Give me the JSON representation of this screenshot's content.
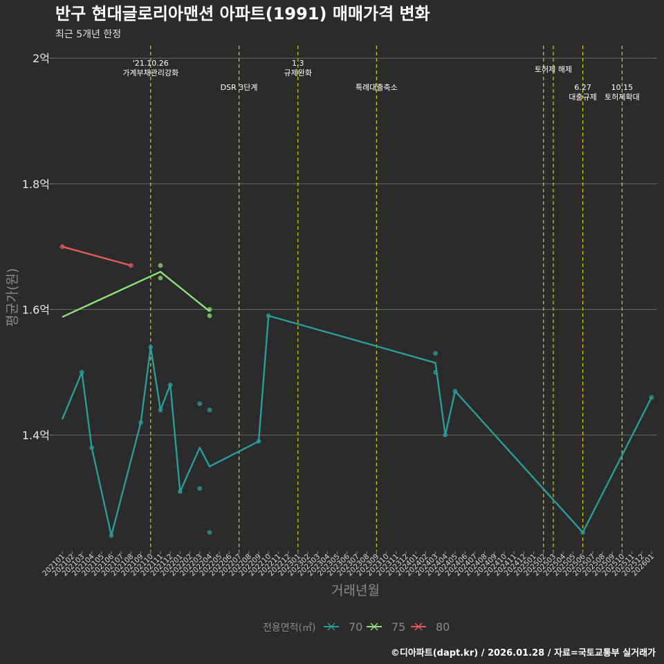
{
  "chart_data": {
    "type": "line",
    "title": "반구 현대글로리아맨션 아파트(1991) 매매가격 변화",
    "subtitle": "최근 5개년 한정",
    "xlabel": "거래년월",
    "ylabel": "평균가(원)",
    "ylim": [
      1.215,
      2.02
    ],
    "yticks": [
      {
        "value": 1.4,
        "label": "1.4억"
      },
      {
        "value": 1.6,
        "label": "1.6억"
      },
      {
        "value": 1.8,
        "label": "1.8억"
      },
      {
        "value": 2.0,
        "label": "2억"
      }
    ],
    "months": [
      "202101",
      "202102",
      "202103",
      "202104",
      "202105",
      "202106",
      "202107",
      "202108",
      "202109",
      "202110",
      "202111",
      "202112",
      "202201",
      "202202",
      "202203",
      "202204",
      "202205",
      "202206",
      "202207",
      "202208",
      "202209",
      "202210",
      "202211",
      "202212",
      "202301",
      "202302",
      "202303",
      "202304",
      "202305",
      "202306",
      "202307",
      "202308",
      "202309",
      "202310",
      "202311",
      "202312",
      "202401",
      "202402",
      "202403",
      "202404",
      "202405",
      "202406",
      "202407",
      "202408",
      "202409",
      "202410",
      "202411",
      "202412",
      "202501",
      "202502",
      "202503",
      "202504",
      "202505",
      "202506",
      "202507",
      "202508",
      "202509",
      "202510",
      "202511",
      "202512",
      "202601"
    ],
    "legend_title": "전용면적(㎡)",
    "series": [
      {
        "name": "70",
        "color": "#2a9d9a",
        "line": [
          [
            "202101",
            1.425
          ],
          [
            "202103",
            1.5
          ],
          [
            "202104",
            1.38
          ],
          [
            "202106",
            1.24
          ],
          [
            "202109",
            1.42
          ],
          [
            "202110",
            1.54
          ],
          [
            "202111",
            1.44
          ],
          [
            "202112",
            1.48
          ],
          [
            "202201",
            1.31
          ],
          [
            "202203",
            1.38
          ],
          [
            "202204",
            1.35
          ],
          [
            "202209",
            1.39
          ],
          [
            "202210",
            1.59
          ],
          [
            "202403",
            1.515
          ],
          [
            "202404",
            1.4
          ],
          [
            "202405",
            1.47
          ],
          [
            "202506",
            1.245
          ],
          [
            "202601",
            1.46
          ]
        ],
        "points": [
          [
            "202103",
            1.5
          ],
          [
            "202104",
            1.38
          ],
          [
            "202106",
            1.24
          ],
          [
            "202109",
            1.42
          ],
          [
            "202110",
            1.54
          ],
          [
            "202111",
            1.44
          ],
          [
            "202112",
            1.48
          ],
          [
            "202201",
            1.31
          ],
          [
            "202203",
            1.45
          ],
          [
            "202203",
            1.315
          ],
          [
            "202204",
            1.44
          ],
          [
            "202204",
            1.245
          ],
          [
            "202209",
            1.39
          ],
          [
            "202210",
            1.59
          ],
          [
            "202403",
            1.53
          ],
          [
            "202403",
            1.5
          ],
          [
            "202404",
            1.4
          ],
          [
            "202405",
            1.47
          ],
          [
            "202506",
            1.245
          ],
          [
            "202601",
            1.46
          ]
        ]
      },
      {
        "name": "75",
        "color": "#90e27a",
        "line": [
          [
            "202101",
            1.588
          ],
          [
            "202111",
            1.66
          ],
          [
            "202204",
            1.597
          ]
        ],
        "points": [
          [
            "202111",
            1.67
          ],
          [
            "202111",
            1.65
          ],
          [
            "202204",
            1.6
          ],
          [
            "202204",
            1.59
          ]
        ]
      },
      {
        "name": "80",
        "color": "#e25a5a",
        "line": [
          [
            "202101",
            1.7
          ],
          [
            "202108",
            1.67
          ]
        ],
        "points": [
          [
            "202101",
            1.7
          ],
          [
            "202108",
            1.67
          ]
        ]
      }
    ],
    "events": [
      {
        "month": "202110",
        "lines": [
          "'21.10.26",
          "가계부채관리강화"
        ],
        "row": 1
      },
      {
        "month": "202207",
        "lines": [
          "DSR 3단계"
        ],
        "row": 3
      },
      {
        "month": "202301",
        "lines": [
          "1.3",
          "규제완화"
        ],
        "row": 1
      },
      {
        "month": "202309",
        "lines": [
          "특례대출축소"
        ],
        "row": 3
      },
      {
        "month": "202502",
        "lines": [],
        "row": 2
      },
      {
        "month": "202503",
        "lines": [
          "토허제 해제"
        ],
        "row": 2
      },
      {
        "month": "202506",
        "lines": [
          "6.27",
          "대출규제"
        ],
        "row": 3
      },
      {
        "month": "202510",
        "lines": [
          "10.15",
          "토허제확대"
        ],
        "row": 3
      }
    ]
  },
  "footer": "©디아파트(dapt.kr) / 2026.01.28 / 자료=국토교통부 실거래가"
}
